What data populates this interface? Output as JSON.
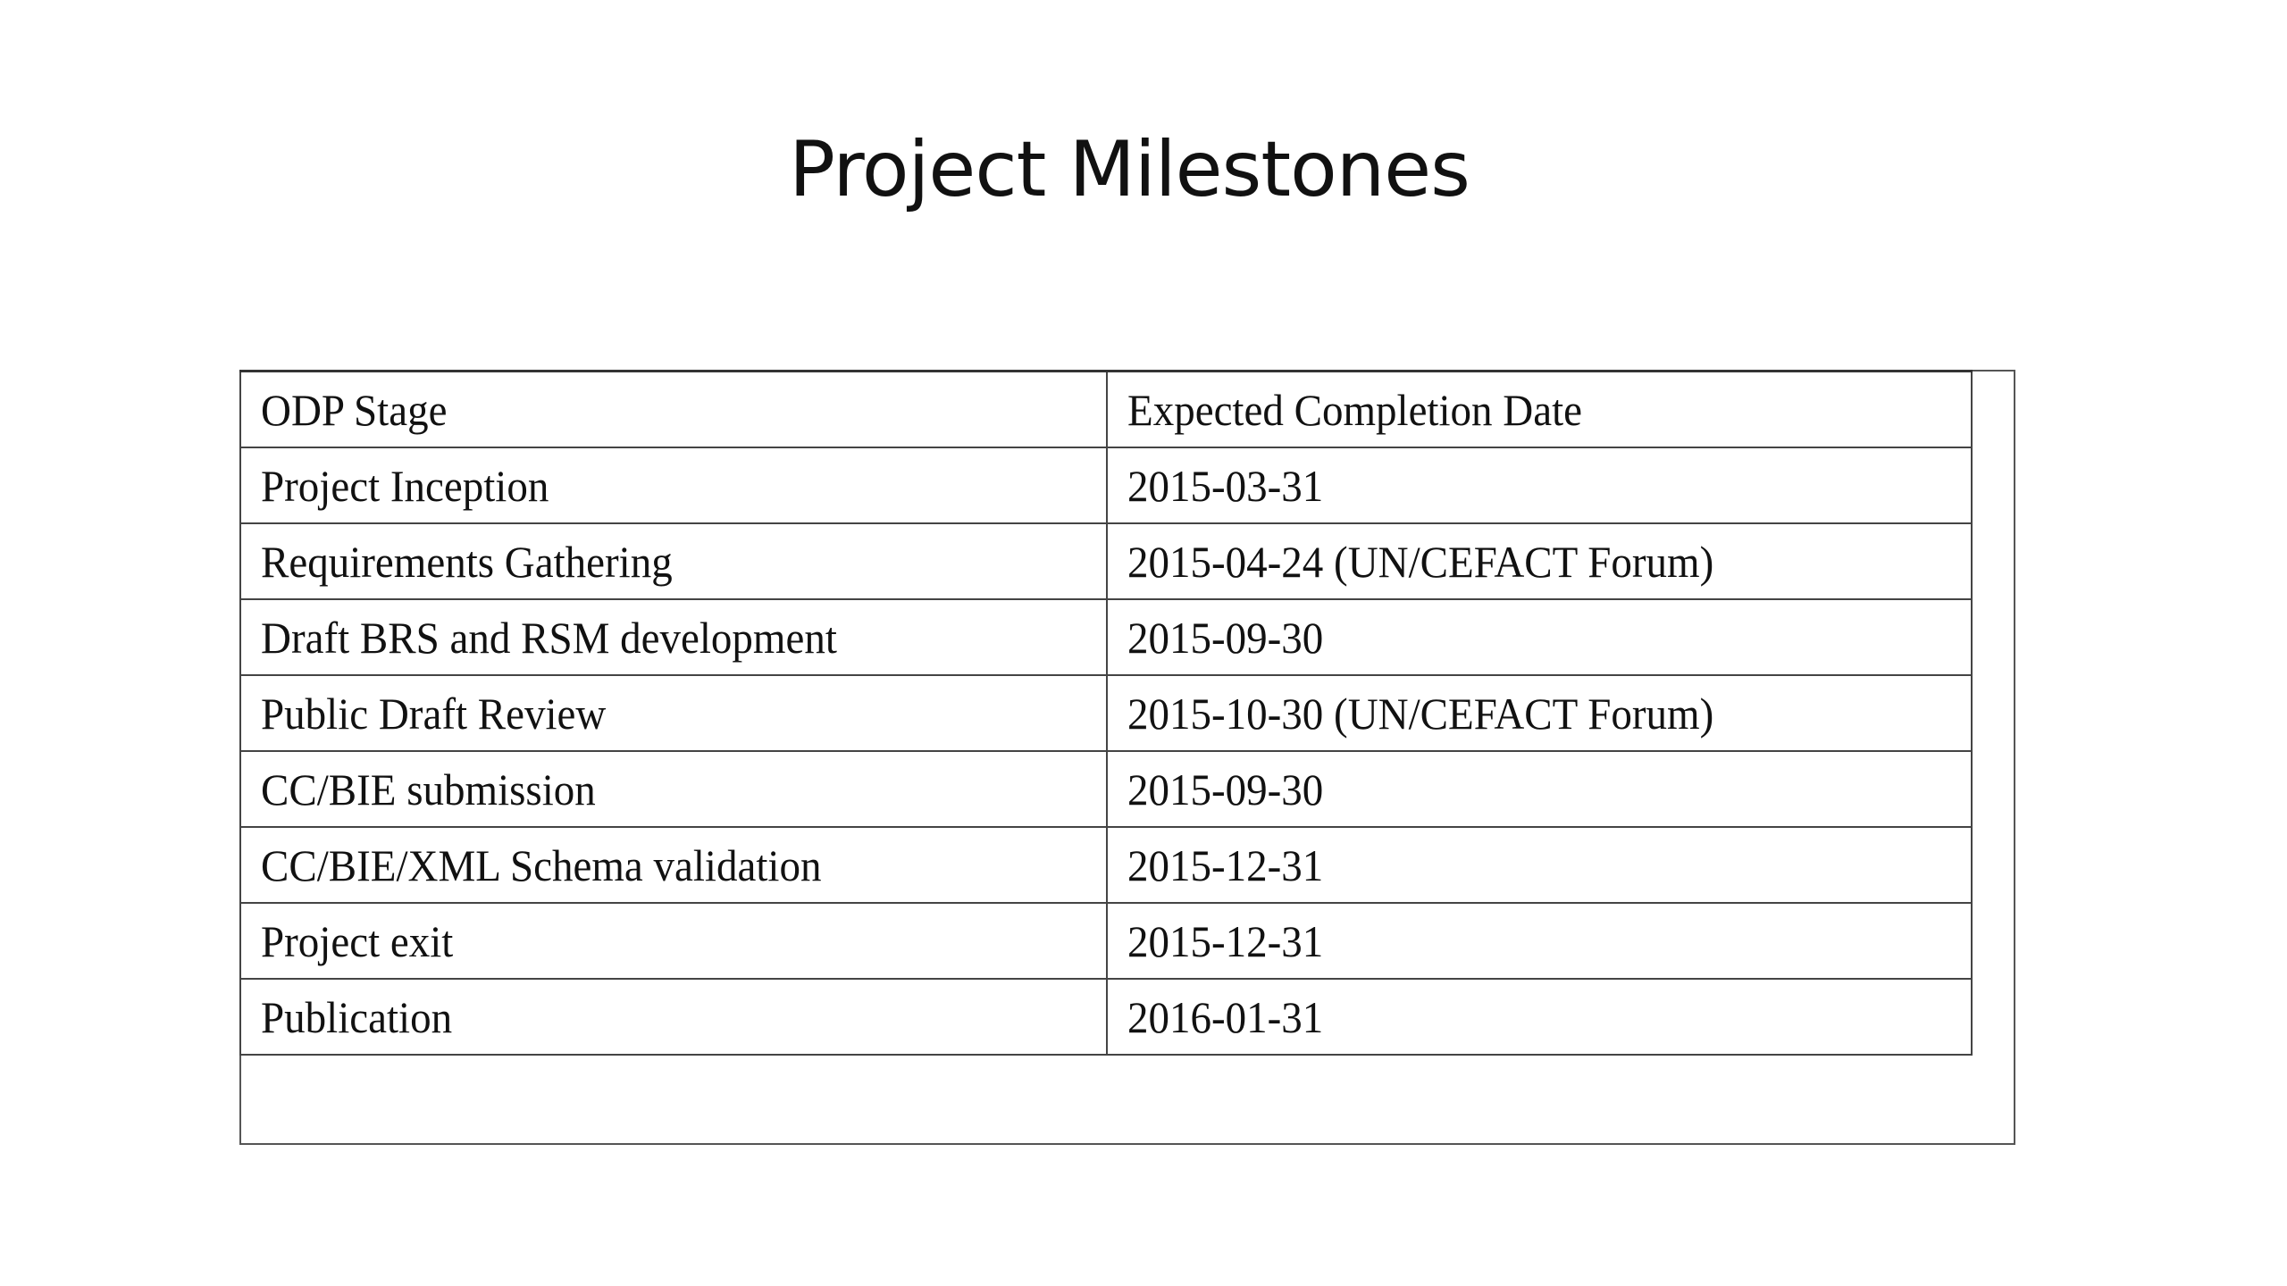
{
  "title": "Project Milestones",
  "table": {
    "headers": [
      "ODP Stage",
      "Expected Completion Date"
    ],
    "rows": [
      [
        "Project Inception",
        "2015-03-31"
      ],
      [
        "Requirements Gathering",
        "2015-04-24 (UN/CEFACT Forum)"
      ],
      [
        "Draft BRS and RSM development",
        "2015-09-30"
      ],
      [
        "Public Draft Review",
        "2015-10-30 (UN/CEFACT Forum)"
      ],
      [
        "CC/BIE submission",
        "2015-09-30"
      ],
      [
        "CC/BIE/XML Schema validation",
        "2015-12-31"
      ],
      [
        "Project exit",
        "2015-12-31"
      ],
      [
        "Publication",
        "2016-01-31"
      ]
    ]
  }
}
